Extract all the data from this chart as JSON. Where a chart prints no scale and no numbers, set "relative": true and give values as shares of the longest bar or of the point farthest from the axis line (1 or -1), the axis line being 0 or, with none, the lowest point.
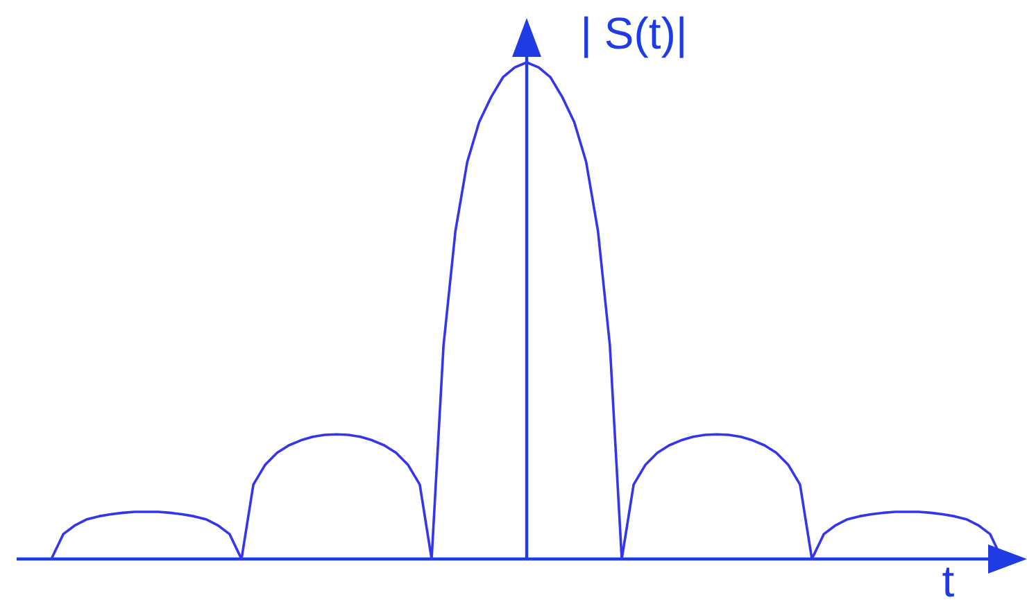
{
  "chart_data": {
    "type": "line",
    "xlabel": "t",
    "ylabel": "| S(t)|",
    "relative": true,
    "color": "#3535ee",
    "categories": [
      null,
      null,
      null,
      null,
      null,
      null,
      null,
      null,
      null,
      null,
      null,
      null,
      null,
      null,
      null,
      null,
      null,
      null,
      null,
      null,
      null,
      null,
      null,
      null,
      null,
      null,
      null,
      null,
      null,
      null,
      null,
      null,
      null,
      null,
      null,
      null,
      null,
      null,
      null,
      null,
      null,
      null,
      null,
      null,
      null,
      null,
      null,
      null,
      null,
      null,
      null,
      null,
      null,
      null,
      null,
      null,
      null,
      null,
      null,
      null,
      null,
      null,
      null,
      null,
      null,
      null,
      null,
      null,
      null,
      null,
      null,
      null,
      null,
      null,
      null,
      null,
      null,
      null,
      null,
      null,
      null
    ],
    "values": [
      0,
      0.05,
      0.068,
      0.08,
      0.086,
      0.09,
      0.093,
      0.095,
      0.095,
      0.095,
      0.093,
      0.09,
      0.086,
      0.08,
      0.068,
      0.05,
      0,
      0.15,
      0.19,
      0.214,
      0.229,
      0.239,
      0.246,
      0.25,
      0.251,
      0.25,
      0.246,
      0.239,
      0.229,
      0.214,
      0.19,
      0.15,
      0,
      0.43,
      0.66,
      0.8,
      0.88,
      0.93,
      0.97,
      0.99,
      1.0,
      0.99,
      0.97,
      0.93,
      0.88,
      0.8,
      0.66,
      0.43,
      0,
      0.15,
      0.19,
      0.214,
      0.229,
      0.239,
      0.246,
      0.25,
      0.251,
      0.25,
      0.246,
      0.239,
      0.229,
      0.214,
      0.19,
      0.15,
      0,
      0.05,
      0.068,
      0.08,
      0.086,
      0.09,
      0.093,
      0.095,
      0.095,
      0.095,
      0.093,
      0.09,
      0.086,
      0.08,
      0.068,
      0.05,
      0
    ]
  }
}
